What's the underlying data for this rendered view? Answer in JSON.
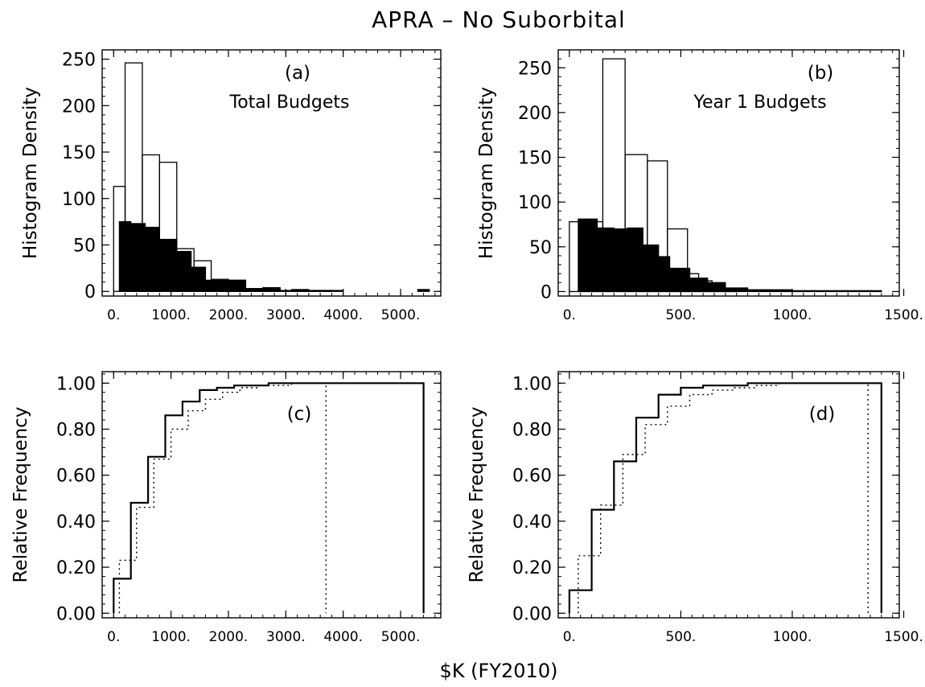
{
  "figure": {
    "title": "APRA – No Suborbital",
    "xlabel": "$K (FY2010)"
  },
  "chart_data": [
    {
      "id": "a",
      "type": "bar",
      "panel_label": "(a)",
      "annotation": "Total Budgets",
      "ylabel": "Histogram Density",
      "xlim": [
        -200,
        5700
      ],
      "ylim": [
        -5,
        260
      ],
      "xticks": [
        0,
        1000,
        2000,
        3000,
        4000,
        5000
      ],
      "xtick_labels": [
        "0.",
        "1000.",
        "2000.",
        "3000.",
        "4000.",
        "5000."
      ],
      "yticks": [
        0,
        50,
        100,
        150,
        200,
        250
      ],
      "ytick_labels": [
        "0",
        "50",
        "100",
        "150",
        "200",
        "250"
      ],
      "series": [
        {
          "style": "outline",
          "bins": [
            [
              0,
              200,
              113
            ],
            [
              200,
              500,
              246
            ],
            [
              500,
              800,
              147
            ],
            [
              800,
              1100,
              139
            ],
            [
              1100,
              1400,
              46
            ],
            [
              1400,
              1700,
              33
            ],
            [
              1700,
              2000,
              13
            ],
            [
              2000,
              2300,
              12
            ],
            [
              2300,
              2600,
              3
            ],
            [
              2600,
              2900,
              3
            ],
            [
              2900,
              3200,
              1
            ],
            [
              3200,
              3500,
              1
            ],
            [
              3500,
              3800,
              1
            ]
          ]
        },
        {
          "style": "filled",
          "bins": [
            [
              100,
              300,
              75
            ],
            [
              300,
              550,
              73
            ],
            [
              550,
              800,
              69
            ],
            [
              800,
              1100,
              56
            ],
            [
              1100,
              1350,
              43
            ],
            [
              1350,
              1600,
              26
            ],
            [
              1600,
              1900,
              12
            ],
            [
              1900,
              2300,
              12
            ],
            [
              2300,
              2600,
              3
            ],
            [
              2600,
              2900,
              4
            ],
            [
              3100,
              3400,
              2
            ],
            [
              3400,
              3700,
              1
            ],
            [
              3700,
              4000,
              1
            ],
            [
              5300,
              5500,
              2
            ]
          ]
        }
      ]
    },
    {
      "id": "b",
      "type": "bar",
      "panel_label": "(b)",
      "annotation": "Year 1 Budgets",
      "ylabel": "Histogram Density",
      "xlim": [
        -50,
        1480
      ],
      "ylim": [
        -5,
        270
      ],
      "xticks": [
        0,
        500,
        1000,
        1500
      ],
      "xtick_labels": [
        "0.",
        "500.",
        "1000.",
        "1500."
      ],
      "yticks": [
        0,
        50,
        100,
        150,
        200,
        250
      ],
      "ytick_labels": [
        "0",
        "50",
        "100",
        "150",
        "200",
        "250"
      ],
      "series": [
        {
          "style": "outline",
          "bins": [
            [
              0,
              50,
              78
            ],
            [
              50,
              150,
              78
            ],
            [
              150,
              250,
              260
            ],
            [
              250,
              350,
              153
            ],
            [
              350,
              440,
              146
            ],
            [
              440,
              530,
              70
            ],
            [
              530,
              580,
              20
            ],
            [
              580,
              640,
              12
            ],
            [
              640,
              700,
              8
            ],
            [
              700,
              760,
              3
            ]
          ]
        },
        {
          "style": "filled",
          "bins": [
            [
              40,
              125,
              81
            ],
            [
              125,
              200,
              71
            ],
            [
              200,
              260,
              70
            ],
            [
              260,
              330,
              71
            ],
            [
              330,
              400,
              52
            ],
            [
              400,
              450,
              39
            ],
            [
              450,
              540,
              26
            ],
            [
              540,
              620,
              15
            ],
            [
              620,
              700,
              10
            ],
            [
              700,
              800,
              4
            ],
            [
              800,
              900,
              2
            ],
            [
              900,
              1000,
              2
            ],
            [
              1000,
              1100,
              1
            ],
            [
              1100,
              1250,
              1
            ],
            [
              1250,
              1400,
              1
            ]
          ]
        }
      ]
    },
    {
      "id": "c",
      "type": "line",
      "panel_label": "(c)",
      "ylabel": "Relative Frequency",
      "xlim": [
        -200,
        5700
      ],
      "ylim": [
        -0.02,
        1.05
      ],
      "xticks": [
        0,
        1000,
        2000,
        3000,
        4000,
        5000
      ],
      "xtick_labels": [
        "0.",
        "1000.",
        "2000.",
        "3000.",
        "4000.",
        "5000."
      ],
      "yticks": [
        0,
        0.2,
        0.4,
        0.6,
        0.8,
        1.0
      ],
      "ytick_labels": [
        "0.00",
        "0.20",
        "0.40",
        "0.60",
        "0.80",
        "1.00"
      ],
      "series": [
        {
          "style": "solid",
          "x": [
            0,
            0,
            300,
            300,
            600,
            600,
            900,
            900,
            1200,
            1200,
            1500,
            1500,
            1800,
            1800,
            2100,
            2100,
            2400,
            2400,
            2700,
            2700,
            3000,
            3000,
            5400,
            5400
          ],
          "y": [
            0,
            0.15,
            0.15,
            0.48,
            0.48,
            0.68,
            0.68,
            0.86,
            0.86,
            0.92,
            0.92,
            0.97,
            0.97,
            0.98,
            0.98,
            0.99,
            0.99,
            0.99,
            0.99,
            1.0,
            1.0,
            1.0,
            1.0,
            0
          ]
        },
        {
          "style": "dotted",
          "x": [
            100,
            100,
            400,
            400,
            700,
            700,
            1000,
            1000,
            1300,
            1300,
            1600,
            1600,
            1900,
            1900,
            2200,
            2200,
            2500,
            2500,
            2800,
            2800,
            3100,
            3100,
            3700,
            3700
          ],
          "y": [
            0,
            0.23,
            0.23,
            0.46,
            0.46,
            0.67,
            0.67,
            0.8,
            0.8,
            0.88,
            0.88,
            0.93,
            0.93,
            0.96,
            0.96,
            0.98,
            0.98,
            0.99,
            0.99,
            0.99,
            0.99,
            1.0,
            1.0,
            0
          ]
        }
      ]
    },
    {
      "id": "d",
      "type": "line",
      "panel_label": "(d)",
      "ylabel": "Relative Frequency",
      "xlim": [
        -50,
        1480
      ],
      "ylim": [
        -0.02,
        1.05
      ],
      "xticks": [
        0,
        500,
        1000,
        1500
      ],
      "xtick_labels": [
        "0.",
        "500.",
        "1000.",
        "1500."
      ],
      "yticks": [
        0,
        0.2,
        0.4,
        0.6,
        0.8,
        1.0
      ],
      "ytick_labels": [
        "0.00",
        "0.20",
        "0.40",
        "0.60",
        "0.80",
        "1.00"
      ],
      "series": [
        {
          "style": "solid",
          "x": [
            0,
            0,
            100,
            100,
            200,
            200,
            300,
            300,
            400,
            400,
            500,
            500,
            600,
            600,
            700,
            700,
            800,
            800,
            900,
            900,
            1000,
            1000,
            1400,
            1400
          ],
          "y": [
            0,
            0.1,
            0.1,
            0.45,
            0.45,
            0.66,
            0.66,
            0.85,
            0.85,
            0.95,
            0.95,
            0.98,
            0.98,
            0.99,
            0.99,
            0.99,
            0.99,
            1.0,
            1.0,
            1.0,
            1.0,
            1.0,
            1.0,
            0
          ]
        },
        {
          "style": "dotted",
          "x": [
            40,
            40,
            140,
            140,
            240,
            240,
            340,
            340,
            440,
            440,
            540,
            540,
            640,
            640,
            740,
            740,
            840,
            840,
            940,
            940,
            1340,
            1340
          ],
          "y": [
            0,
            0.25,
            0.25,
            0.47,
            0.47,
            0.69,
            0.69,
            0.82,
            0.82,
            0.9,
            0.9,
            0.95,
            0.95,
            0.97,
            0.97,
            0.98,
            0.98,
            0.99,
            0.99,
            1.0,
            1.0,
            0
          ]
        }
      ]
    }
  ]
}
